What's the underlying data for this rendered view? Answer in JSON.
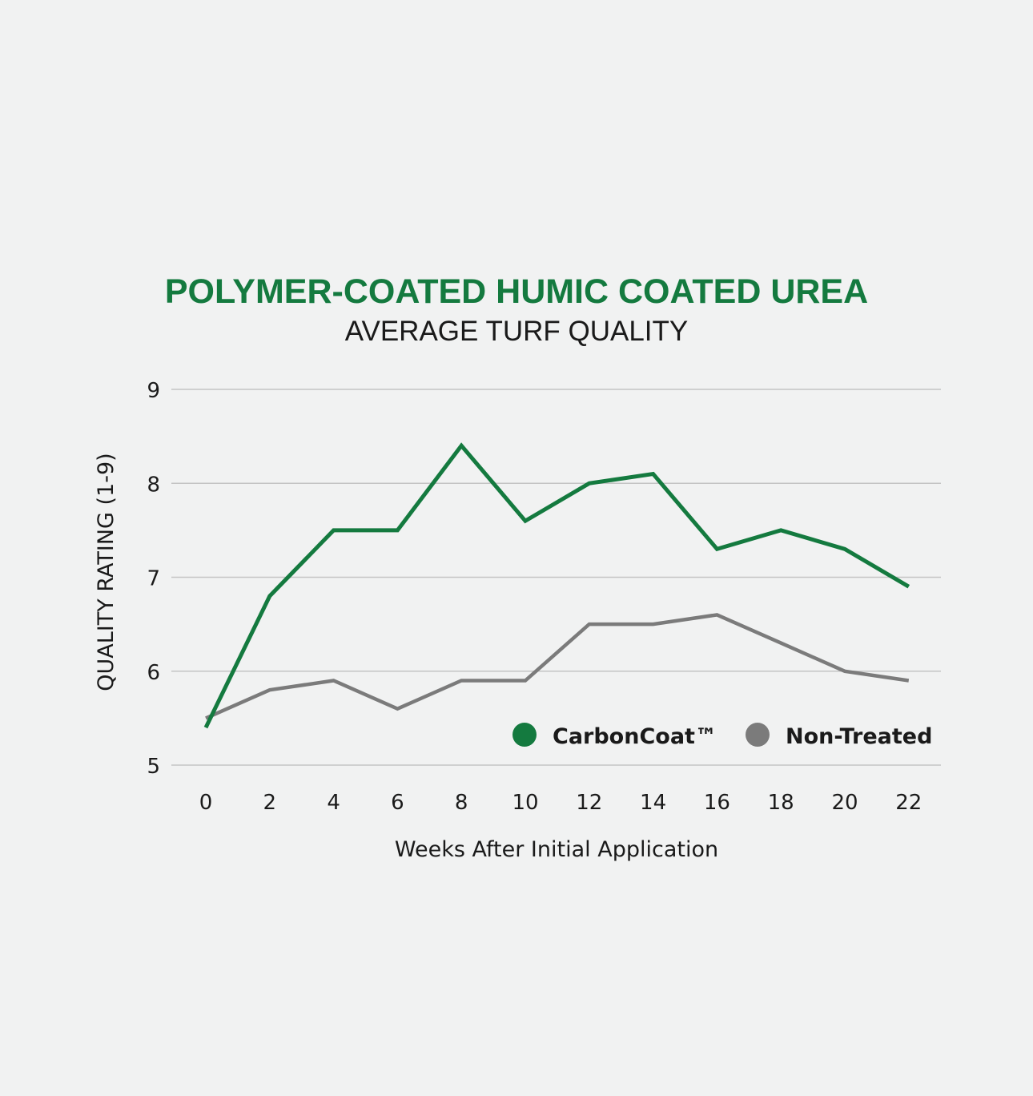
{
  "colors": {
    "background": "#f1f2f2",
    "title": "#147a3f",
    "text": "#1a1a1a",
    "grid": "#c4c4c4",
    "carboncoat": "#147a3f",
    "non_treated": "#7b7b7b"
  },
  "chart_data": {
    "type": "line",
    "title": "POLYMER-COATED HUMIC COATED UREA",
    "subtitle": "AVERAGE TURF QUALITY",
    "xlabel": "Weeks After Initial Application",
    "ylabel": "QUALITY RATING (1-9)",
    "x": [
      0,
      2,
      4,
      6,
      8,
      10,
      12,
      14,
      16,
      18,
      20,
      22
    ],
    "x_tick_labels": [
      "0",
      "2",
      "4",
      "6",
      "8",
      "10",
      "12",
      "14",
      "16",
      "18",
      "20",
      "22"
    ],
    "ylim": [
      5,
      9
    ],
    "y_ticks": [
      5,
      6,
      7,
      8,
      9
    ],
    "y_tick_labels": [
      "5",
      "6",
      "7",
      "8",
      "9"
    ],
    "grid": "horizontal",
    "legend_position": "bottom-right",
    "series": [
      {
        "name": "CarbonCoat™",
        "color": "#147a3f",
        "values": [
          5.4,
          6.8,
          7.5,
          7.5,
          8.4,
          7.6,
          8.0,
          8.1,
          7.3,
          7.5,
          7.3,
          6.9
        ]
      },
      {
        "name": "Non-Treated",
        "color": "#7b7b7b",
        "values": [
          5.5,
          5.8,
          5.9,
          5.6,
          5.9,
          5.9,
          6.5,
          6.5,
          6.6,
          6.3,
          6.0,
          5.9
        ]
      }
    ]
  }
}
